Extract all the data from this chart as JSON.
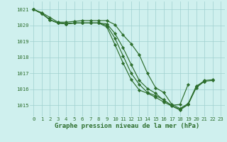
{
  "background_color": "#cff0ee",
  "grid_color": "#9fcfcf",
  "line_color": "#2d6e2d",
  "marker_color": "#2d6e2d",
  "xlabel": "Graphe pression niveau de la mer (hPa)",
  "xlabel_fontsize": 6.5,
  "ylabel_ticks": [
    1015,
    1016,
    1017,
    1018,
    1019,
    1020,
    1021
  ],
  "xlim": [
    -0.5,
    23.5
  ],
  "ylim": [
    1014.3,
    1021.5
  ],
  "tick_fontsize": 5.2,
  "series": [
    {
      "x": [
        0,
        1,
        2,
        3,
        4,
        5,
        6,
        7,
        8,
        9,
        10,
        11,
        12,
        13,
        14,
        15,
        16,
        17,
        18,
        19,
        20,
        21
      ],
      "y": [
        1021.0,
        1020.8,
        1020.5,
        1020.2,
        1020.2,
        1020.25,
        1020.3,
        1020.3,
        1020.3,
        1020.3,
        1020.05,
        1019.4,
        1018.85,
        1018.15,
        1017.0,
        1016.1,
        1015.8,
        1015.05,
        1014.8,
        1015.1,
        1016.2,
        1016.5
      ]
    },
    {
      "x": [
        0,
        1,
        2,
        3,
        4,
        5,
        6,
        7,
        8,
        9,
        10,
        11,
        12,
        13,
        14,
        15,
        16,
        17,
        18,
        19
      ],
      "y": [
        1021.0,
        1020.75,
        1020.35,
        1020.15,
        1020.1,
        1020.15,
        1020.15,
        1020.15,
        1020.15,
        1020.1,
        1019.5,
        1018.6,
        1017.55,
        1016.55,
        1016.05,
        1015.75,
        1015.3,
        1015.0,
        1015.05,
        1016.3
      ]
    },
    {
      "x": [
        0,
        1,
        2,
        3,
        4,
        5,
        6,
        7,
        8,
        9,
        10,
        11,
        12,
        13,
        14,
        15,
        16,
        17,
        18,
        19,
        20,
        21,
        22
      ],
      "y": [
        1021.0,
        1020.75,
        1020.35,
        1020.15,
        1020.1,
        1020.15,
        1020.15,
        1020.15,
        1020.15,
        1020.0,
        1019.2,
        1018.1,
        1017.0,
        1016.3,
        1015.8,
        1015.6,
        1015.35,
        1014.95,
        1014.75,
        1015.05,
        1016.15,
        1016.55,
        1016.6
      ]
    },
    {
      "x": [
        0,
        1,
        2,
        3,
        4,
        5,
        6,
        7,
        8,
        9,
        10,
        11,
        12,
        13,
        14,
        15,
        16,
        17,
        18,
        19,
        20,
        21,
        22
      ],
      "y": [
        1021.0,
        1020.75,
        1020.35,
        1020.15,
        1020.1,
        1020.15,
        1020.15,
        1020.15,
        1020.15,
        1019.9,
        1018.8,
        1017.65,
        1016.6,
        1015.95,
        1015.75,
        1015.5,
        1015.2,
        1014.95,
        1014.7,
        1015.05,
        1016.1,
        1016.5,
        1016.55
      ]
    }
  ]
}
